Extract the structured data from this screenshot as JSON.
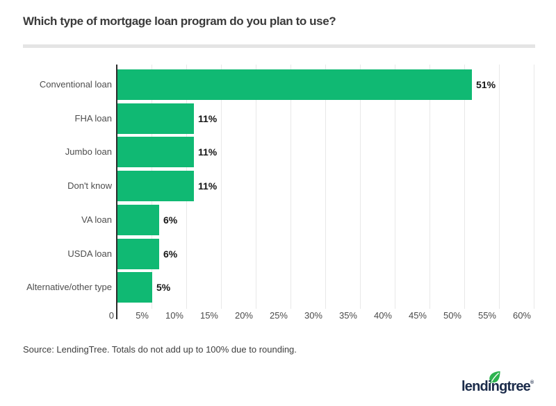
{
  "header": {
    "title": "Which type of mortgage loan program do you plan to use?"
  },
  "chart_data": {
    "type": "bar",
    "orientation": "horizontal",
    "title": "Which type of mortgage loan program do you plan to use?",
    "categories": [
      "Conventional loan",
      "FHA loan",
      "Jumbo loan",
      "Don't know",
      "VA loan",
      "USDA loan",
      "Alternative/other type"
    ],
    "values": [
      51,
      11,
      11,
      11,
      6,
      6,
      5
    ],
    "value_labels": [
      "51%",
      "11%",
      "11%",
      "11%",
      "6%",
      "6%",
      "5%"
    ],
    "xlabel": "",
    "ylabel": "",
    "xlim": [
      0,
      60
    ],
    "x_tick_step": 5,
    "x_ticks": [
      "0",
      "5%",
      "10%",
      "15%",
      "20%",
      "25%",
      "30%",
      "35%",
      "40%",
      "45%",
      "50%",
      "55%",
      "60%"
    ],
    "grid": "vertical",
    "legend": "none",
    "bar_color": "#10b973"
  },
  "footer": {
    "source_note": "Source: LendingTree. Totals do not add up to 100% due to rounding."
  },
  "logo": {
    "text": "lendingtree",
    "registered_mark": "®",
    "text_color": "#1b2b4a",
    "leaf_color": "#2eb34f"
  }
}
